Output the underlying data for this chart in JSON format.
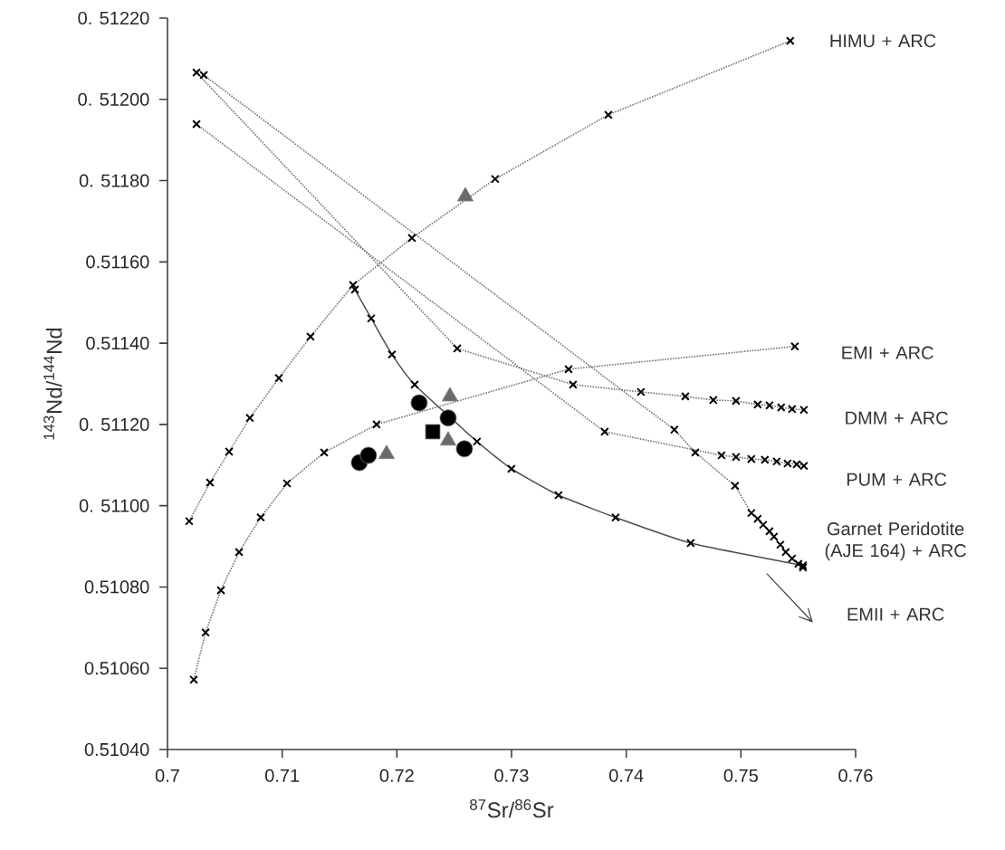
{
  "chart_data": {
    "type": "line",
    "xlabel": "$^{87}$Sr/$^{86}$Sr",
    "ylabel": "$^{143}$Nd/$^{144}$Nd",
    "xlim": [
      0.7,
      0.76
    ],
    "ylim": [
      0.5104,
      0.5122
    ],
    "xticks": [
      0.7,
      0.71,
      0.72,
      0.73,
      0.74,
      0.75,
      0.76
    ],
    "yticks": [
      {
        "value": 0.5104,
        "label": "0.51040"
      },
      {
        "value": 0.5106,
        "label": "0.51060"
      },
      {
        "value": 0.5108,
        "label": "0.51080"
      },
      {
        "value": 0.511,
        "label": "0. 51100"
      },
      {
        "value": 0.5112,
        "label": "0. 51120"
      },
      {
        "value": 0.5114,
        "label": "0.51140"
      },
      {
        "value": 0.5116,
        "label": "0.51160"
      },
      {
        "value": 0.5118,
        "label": "0. 51180"
      },
      {
        "value": 0.512,
        "label": "0. 51200"
      },
      {
        "value": 0.5122,
        "label": "0. 51220"
      }
    ],
    "marker": "cross",
    "line_style": "dotted",
    "series": [
      {
        "name": "HIMU + ARC",
        "color": "#000000",
        "x": [
          0.70189,
          0.70371,
          0.70537,
          0.70718,
          0.70971,
          0.71247,
          0.71618,
          0.72131,
          0.72857,
          0.73844,
          0.7543
        ],
        "values": [
          0.510962,
          0.511057,
          0.511133,
          0.511216,
          0.511314,
          0.511416,
          0.511543,
          0.511659,
          0.511804,
          0.511962,
          0.512144
        ]
      },
      {
        "name": "EMI + ARC",
        "color": "#000000",
        "x": [
          0.70229,
          0.70332,
          0.70466,
          0.70624,
          0.70813,
          0.71042,
          0.71366,
          0.71823,
          0.73497,
          0.7547
        ],
        "values": [
          0.510572,
          0.510688,
          0.510792,
          0.510886,
          0.510971,
          0.511055,
          0.511131,
          0.5112,
          0.511336,
          0.511392
        ]
      },
      {
        "name": "DMM + ARC",
        "color": "#000000",
        "x": [
          0.70253,
          0.72526,
          0.73536,
          0.74128,
          0.74515,
          0.74759,
          0.74957,
          0.75146,
          0.75249,
          0.75351,
          0.75446,
          0.75549
        ],
        "values": [
          0.512066,
          0.511387,
          0.511298,
          0.51128,
          0.511269,
          0.51126,
          0.511258,
          0.511249,
          0.511247,
          0.511242,
          0.511238,
          0.511236
        ]
      },
      {
        "name": "PUM + ARC",
        "color": "#000000",
        "x": [
          0.70253,
          0.73812,
          0.74831,
          0.74957,
          0.75091,
          0.75209,
          0.75312,
          0.75407,
          0.75486,
          0.75549
        ],
        "values": [
          0.511939,
          0.511182,
          0.511124,
          0.51112,
          0.511115,
          0.511113,
          0.511109,
          0.511104,
          0.511102,
          0.511098
        ]
      },
      {
        "name": "Garnet Peridotite (AJE 164) + ARC",
        "color": "#000000",
        "x": [
          0.70316,
          0.7442,
          0.74602,
          0.74949,
          0.75091,
          0.75146,
          0.75194,
          0.75249,
          0.75288,
          0.75344,
          0.75391,
          0.75446,
          0.75501,
          0.75541
        ],
        "values": [
          0.51206,
          0.511187,
          0.511131,
          0.511049,
          0.510982,
          0.510968,
          0.510953,
          0.510937,
          0.510924,
          0.510904,
          0.510886,
          0.51087,
          0.510857,
          0.510848
        ]
      },
      {
        "name": "EMII + ARC",
        "color": "#000000",
        "line_style": "solid",
        "x": [
          0.71634,
          0.71776,
          0.71957,
          0.72155,
          0.72699,
          0.72999,
          0.7341,
          0.73907,
          0.74562,
          0.75541
        ],
        "values": [
          0.511532,
          0.511461,
          0.511372,
          0.511298,
          0.511158,
          0.511091,
          0.511026,
          0.510971,
          0.510908,
          0.510853
        ]
      },
      {
        "type": "scatter",
        "marker": "circle",
        "color": "#000000",
        "x": [
          0.72194,
          0.72447,
          0.72589,
          0.71673,
          0.71752
        ],
        "values": [
          0.511253,
          0.511216,
          0.51114,
          0.511106,
          0.511124
        ]
      },
      {
        "type": "scatter",
        "marker": "square",
        "color": "#000000",
        "x": [
          0.72313
        ],
        "values": [
          0.511182
        ]
      },
      {
        "type": "scatter",
        "marker": "triangle",
        "color": "#6a6a6a",
        "x": [
          0.72463,
          0.72447,
          0.7191,
          0.72597
        ],
        "values": [
          0.511269,
          0.51116,
          0.511127,
          0.511761
        ]
      }
    ]
  }
}
